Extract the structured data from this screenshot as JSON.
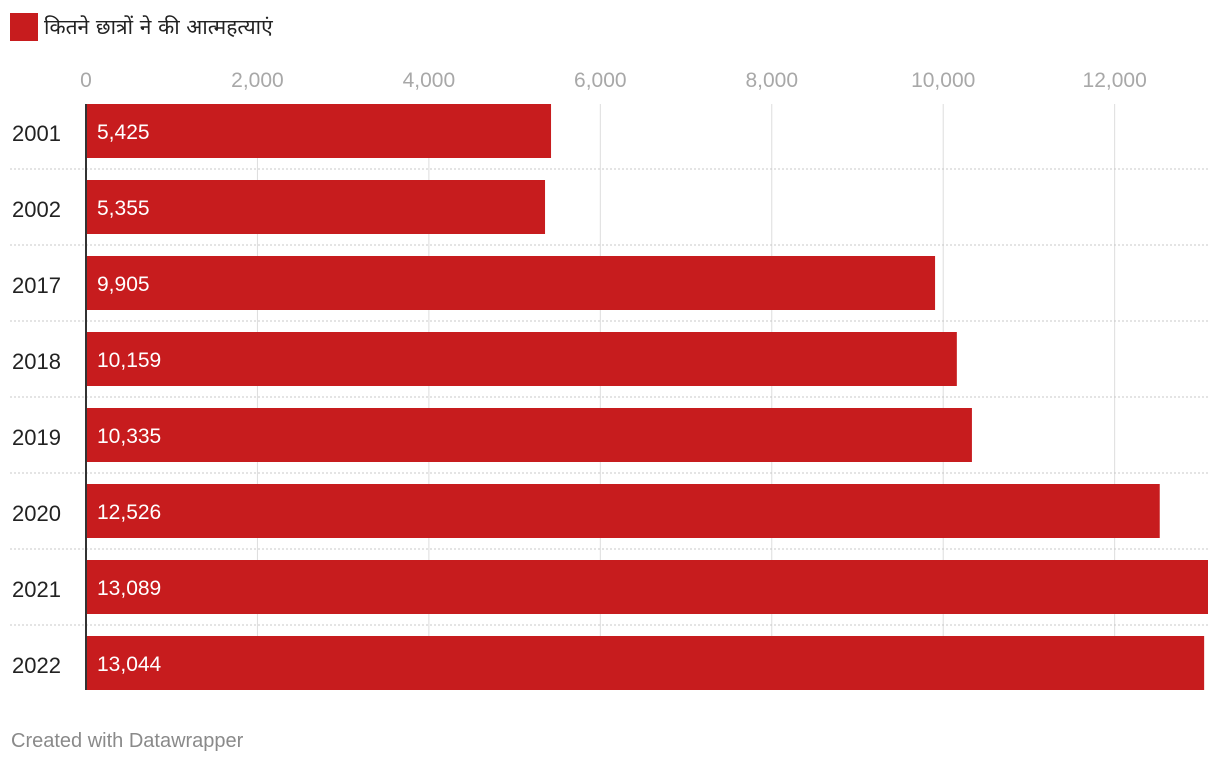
{
  "chart_data": {
    "type": "bar",
    "orientation": "horizontal",
    "categories": [
      "2001",
      "2002",
      "2017",
      "2018",
      "2019",
      "2020",
      "2021",
      "2022"
    ],
    "series": [
      {
        "name": "कितने छात्रों ने की आत्महत्याएं",
        "values": [
          5425,
          5355,
          9905,
          10159,
          10335,
          12526,
          13089,
          13044
        ],
        "value_labels": [
          "5,425",
          "5,355",
          "9,905",
          "10,159",
          "10,335",
          "12,526",
          "13,089",
          "13,044"
        ]
      }
    ],
    "xlim": [
      0,
      13089
    ],
    "xticks": [
      0,
      2000,
      4000,
      6000,
      8000,
      10000,
      12000
    ],
    "xtick_labels": [
      "0",
      "2,000",
      "4,000",
      "6,000",
      "8,000",
      "10,000",
      "12,000"
    ],
    "grid": true,
    "legend_position": "top-left",
    "bar_color": "#c71c1e"
  },
  "footer": {
    "credit": "Created with Datawrapper"
  }
}
